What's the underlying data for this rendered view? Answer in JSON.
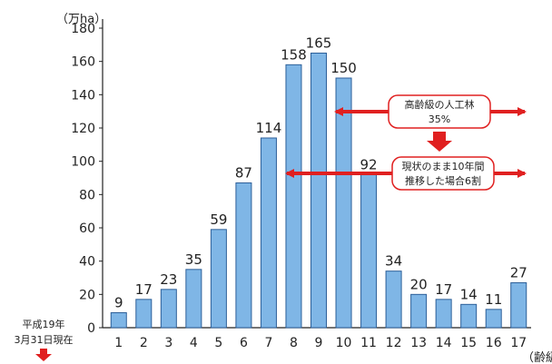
{
  "chart_data": {
    "type": "bar",
    "categories": [
      "1",
      "2",
      "3",
      "4",
      "5",
      "6",
      "7",
      "8",
      "9",
      "10",
      "11",
      "12",
      "13",
      "14",
      "15",
      "16",
      "17"
    ],
    "values": [
      9,
      17,
      23,
      35,
      59,
      87,
      114,
      158,
      165,
      150,
      92,
      34,
      20,
      17,
      14,
      11,
      27
    ],
    "y_unit": "（万ha）",
    "x_unit": "（齢級）",
    "ylim": [
      0,
      180
    ],
    "yticks": [
      0,
      20,
      40,
      60,
      80,
      100,
      120,
      140,
      160,
      180
    ],
    "bar_color": "#7fb6e6",
    "bar_stroke": "#2c5f99",
    "arrow_color": "#e02020",
    "annotations": [
      {
        "line1": "高齢級の人工林",
        "line2": "35%"
      },
      {
        "line1": "現状のまま10年間",
        "line2": "推移した場合6割"
      }
    ],
    "note": {
      "line1": "平成19年",
      "line2": "3月31日現在"
    }
  }
}
